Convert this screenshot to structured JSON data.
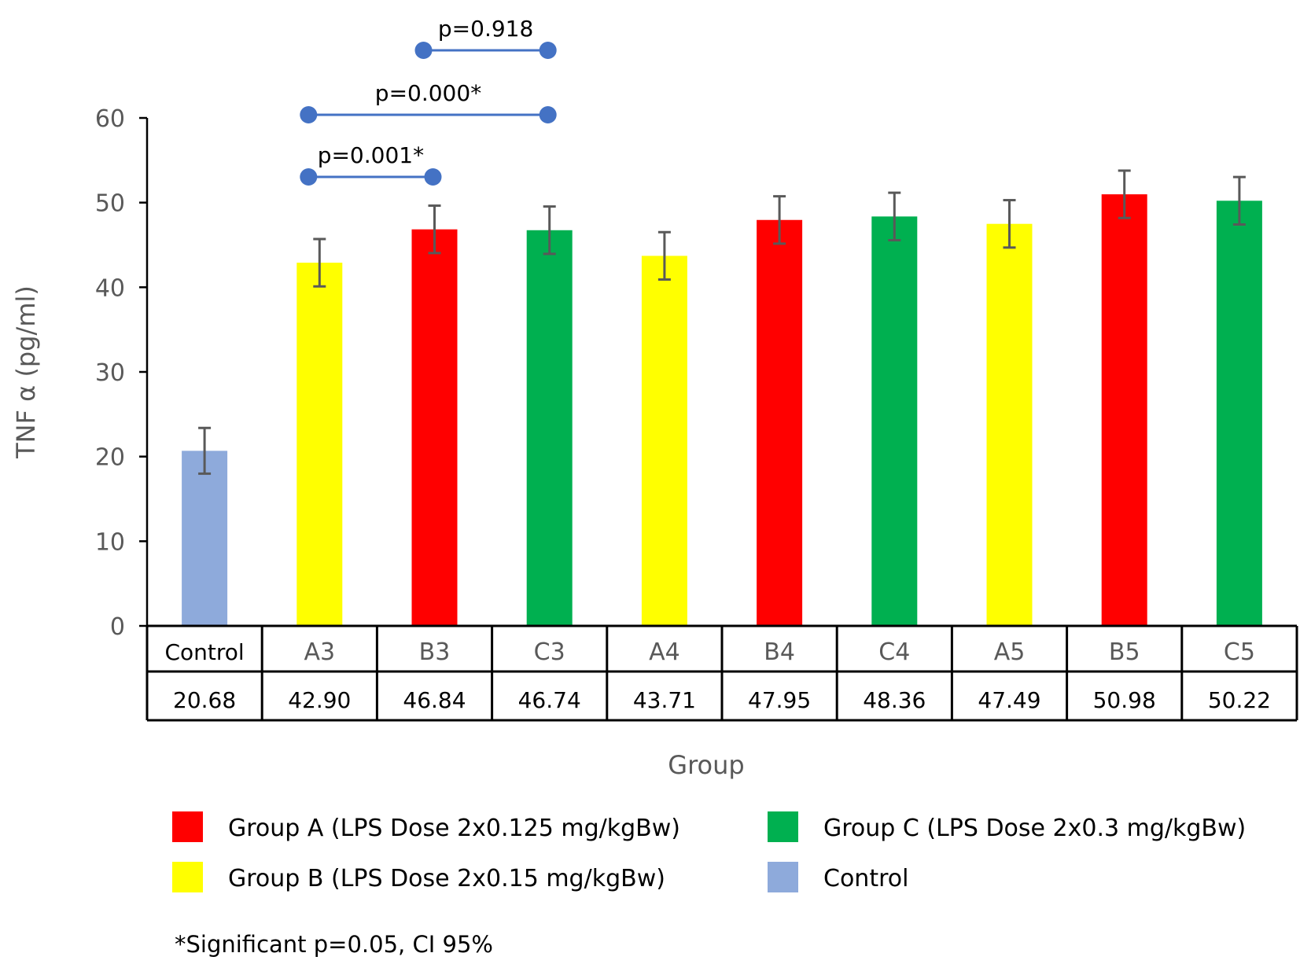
{
  "chart_data": {
    "type": "bar",
    "xlabel": "Group",
    "ylabel": "TNF α (pg/ml)",
    "ylim": [
      0,
      60
    ],
    "yticks": [
      0,
      10,
      20,
      30,
      40,
      50,
      60
    ],
    "grid": false,
    "categories": [
      "Control",
      "A3",
      "B3",
      "C3",
      "A4",
      "B4",
      "C4",
      "A5",
      "B5",
      "C5"
    ],
    "values": [
      20.68,
      42.9,
      46.84,
      46.74,
      43.71,
      47.95,
      48.36,
      47.49,
      50.98,
      50.22
    ],
    "value_labels": [
      "20.68",
      "42.90",
      "46.84",
      "46.74",
      "43.71",
      "47.95",
      "48.36",
      "47.49",
      "50.98",
      "50.22"
    ],
    "error": [
      2.7,
      2.8,
      2.8,
      2.8,
      2.8,
      2.8,
      2.8,
      2.8,
      2.8,
      2.8
    ],
    "bar_colors": [
      "#8EAADB",
      "#FFFF00",
      "#FF0000",
      "#00B050",
      "#FFFF00",
      "#FF0000",
      "#00B050",
      "#FFFF00",
      "#FF0000",
      "#00B050"
    ],
    "error_bar_color": "#595959",
    "comparisons": [
      {
        "from": "A3",
        "to": "B3",
        "label": "p=0.001*",
        "level": 1
      },
      {
        "from": "A3",
        "to": "C3",
        "label": "p=0.000*",
        "level": 2
      },
      {
        "from": "B3",
        "to": "C3",
        "label": "p=0.918",
        "level": 3
      }
    ],
    "comparison_color": "#4472C4",
    "legend": {
      "placement": "bottom",
      "entries": [
        {
          "label": "Group A (LPS Dose 2x0.125 mg/kgBw)",
          "color": "#FF0000"
        },
        {
          "label": "Group C (LPS Dose 2x0.3 mg/kgBw)",
          "color": "#00B050"
        },
        {
          "label": "Group  B (LPS Dose 2x0.15 mg/kgBw)",
          "color": "#FFFF00"
        },
        {
          "label": "Control",
          "color": "#8EAADB"
        }
      ]
    },
    "footnote": "*Significant p=0.05, CI 95%"
  }
}
